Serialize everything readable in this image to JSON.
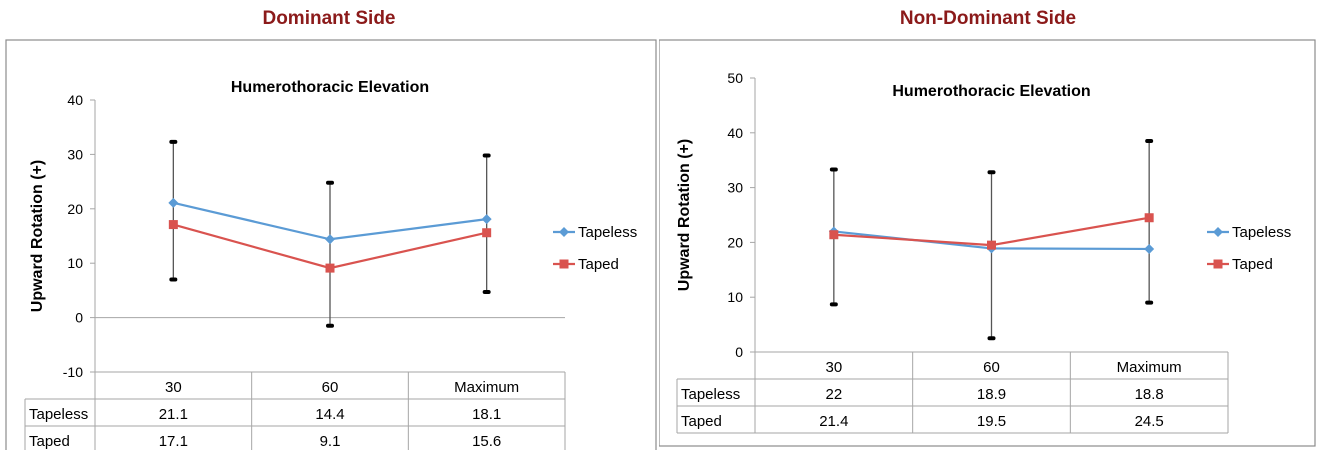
{
  "headings": {
    "left": "Dominant Side",
    "right": "Non-Dominant Side",
    "color": "#8B1A1A"
  },
  "colors": {
    "tapeless": "#5B9BD5",
    "taped": "#D9534F",
    "error_bar": "#000000",
    "axis": "#A6A6A6"
  },
  "chart_data": [
    {
      "type": "line",
      "title": "Humerothoracic Elevation",
      "ylabel": "Upward Rotation (+)",
      "xlabel": "",
      "categories": [
        "30",
        "60",
        "Maximum"
      ],
      "ylim": [
        -10,
        40
      ],
      "yticks": [
        -10,
        0,
        10,
        20,
        30,
        40
      ],
      "grid": false,
      "legend": "right",
      "series": [
        {
          "name": "Tapeless",
          "values": [
            21.1,
            14.4,
            18.1
          ],
          "marker": "diamond"
        },
        {
          "name": "Taped",
          "values": [
            17.1,
            9.1,
            15.6
          ],
          "marker": "square"
        }
      ],
      "error_bars": [
        {
          "category": "30",
          "low": 7,
          "high": 32.3
        },
        {
          "category": "60",
          "low": -1.5,
          "high": 24.8
        },
        {
          "category": "Maximum",
          "low": 4.7,
          "high": 29.8
        }
      ],
      "data_table": {
        "rows": [
          {
            "label": "Tapeless",
            "values": [
              "21.1",
              "14.4",
              "18.1"
            ]
          },
          {
            "label": "Taped",
            "values": [
              "17.1",
              "9.1",
              "15.6"
            ]
          }
        ]
      }
    },
    {
      "type": "line",
      "title": "Humerothoracic Elevation",
      "ylabel": "Upward Rotation (+)",
      "xlabel": "",
      "categories": [
        "30",
        "60",
        "Maximum"
      ],
      "ylim": [
        0,
        50
      ],
      "yticks": [
        0,
        10,
        20,
        30,
        40,
        50
      ],
      "grid": false,
      "legend": "right",
      "series": [
        {
          "name": "Tapeless",
          "values": [
            22,
            18.9,
            18.8
          ],
          "marker": "diamond"
        },
        {
          "name": "Taped",
          "values": [
            21.4,
            19.5,
            24.5
          ],
          "marker": "square"
        }
      ],
      "error_bars": [
        {
          "category": "30",
          "low": 8.7,
          "high": 33.3
        },
        {
          "category": "60",
          "low": 2.5,
          "high": 32.8
        },
        {
          "category": "Maximum",
          "low": 9,
          "high": 38.5
        }
      ],
      "data_table": {
        "rows": [
          {
            "label": "Tapeless",
            "values": [
              "22",
              "18.9",
              "18.8"
            ]
          },
          {
            "label": "Taped",
            "values": [
              "21.4",
              "19.5",
              "24.5"
            ]
          }
        ]
      }
    }
  ]
}
